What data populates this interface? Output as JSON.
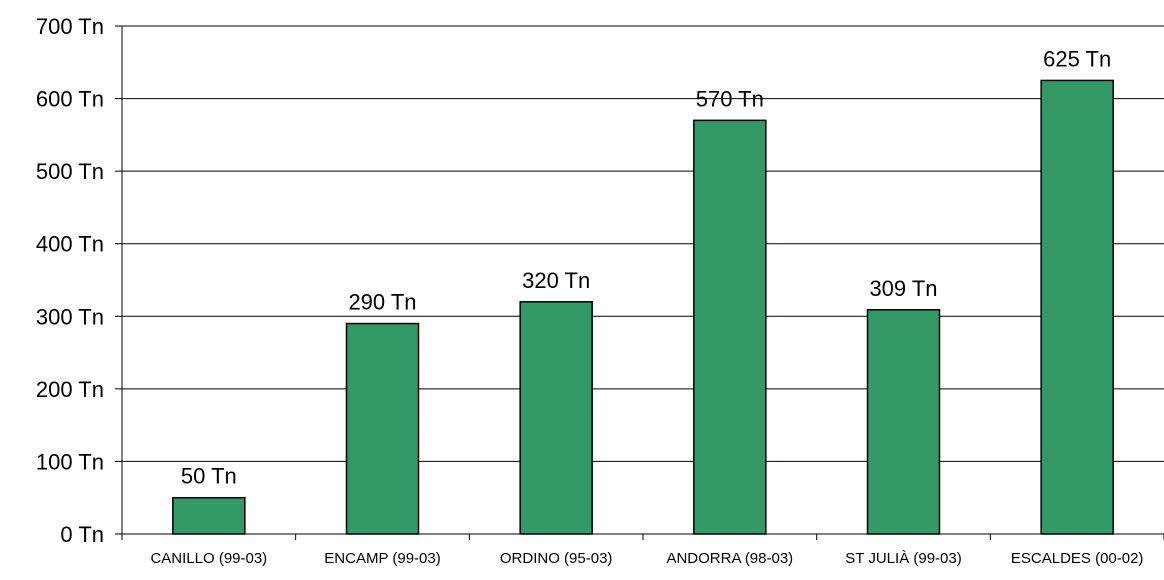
{
  "chart_data": {
    "type": "bar",
    "categories": [
      "CANILLO (99-03)",
      "ENCAMP (99-03)",
      "ORDINO (95-03)",
      "ANDORRA (98-03)",
      "ST JULIÀ (99-03)",
      "ESCALDES (00-02)"
    ],
    "values": [
      50,
      290,
      320,
      570,
      309,
      625
    ],
    "data_labels": [
      "50 Tn",
      "290 Tn",
      "320 Tn",
      "570 Tn",
      "309 Tn",
      "625 Tn"
    ],
    "yticks": [
      0,
      100,
      200,
      300,
      400,
      500,
      600,
      700
    ],
    "ytick_labels": [
      "0  Tn",
      "100  Tn",
      "200  Tn",
      "300  Tn",
      "400  Tn",
      "500  Tn",
      "600  Tn",
      "700  Tn"
    ],
    "ylim": [
      0,
      700
    ],
    "grid": true,
    "bar_color": "#339966",
    "title": "",
    "xlabel": "",
    "ylabel": ""
  }
}
